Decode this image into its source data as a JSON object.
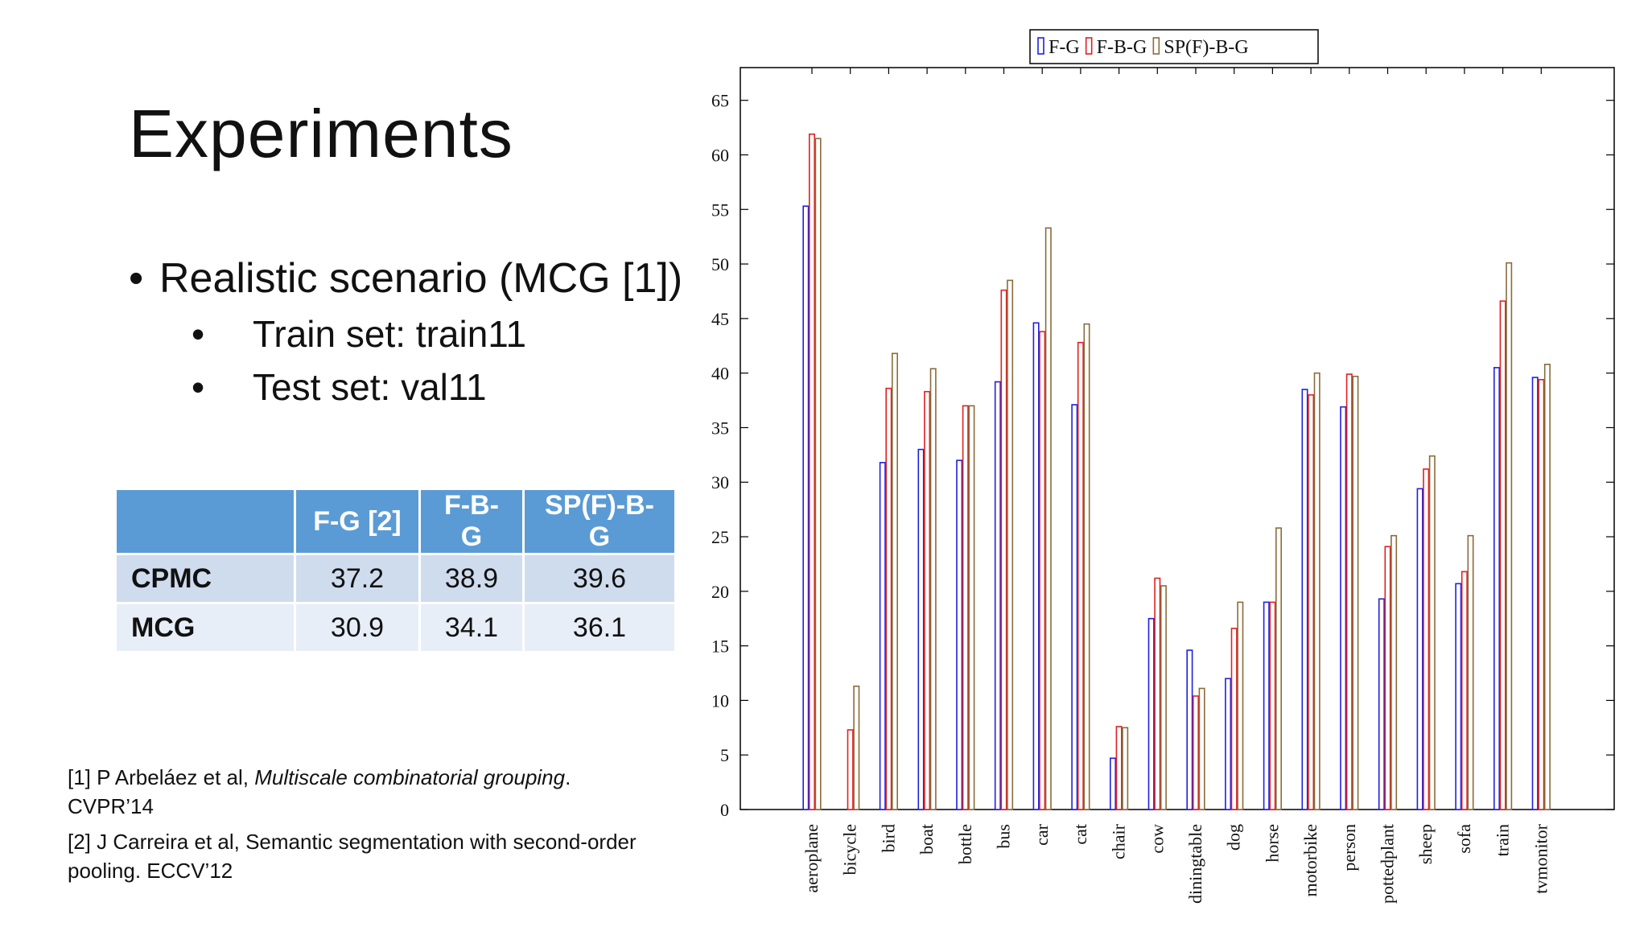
{
  "slide": {
    "title": "Experiments",
    "bullet_main": "Realistic scenario (MCG [1])",
    "sub_bullets": [
      "Train set: train11",
      "Test set: val11"
    ]
  },
  "table": {
    "headers": [
      "",
      "F-G [2]",
      "F-B-G",
      "SP(F)-B-G"
    ],
    "rows": [
      {
        "label": "CPMC",
        "values": [
          "37.2",
          "38.9",
          "39.6"
        ]
      },
      {
        "label": "MCG",
        "values": [
          "30.9",
          "34.1",
          "36.1"
        ]
      }
    ]
  },
  "references": [
    {
      "prefix": "[1] P Arbeláez et al, ",
      "title": "Multiscale combinatorial grouping",
      "suffix": ". CVPR’14"
    },
    {
      "prefix": "[2] J Carreira et al, Semantic segmentation with second-order pooling. ECCV’12",
      "title": "",
      "suffix": ""
    }
  ],
  "colors": {
    "header_blue": "#5b9bd5",
    "series_fg": "#2020e0",
    "series_fbg": "#e02020",
    "series_spfbg": "#8b6b3a"
  },
  "chart_data": {
    "type": "bar",
    "categories": [
      "aeroplane",
      "bicycle",
      "bird",
      "boat",
      "bottle",
      "bus",
      "car",
      "cat",
      "chair",
      "cow",
      "diningtable",
      "dog",
      "horse",
      "motorbike",
      "person",
      "pottedplant",
      "sheep",
      "sofa",
      "train",
      "tvmonitor"
    ],
    "series": [
      {
        "name": "F-G",
        "color": "#2020e0",
        "values": [
          55.3,
          0,
          31.8,
          33.0,
          32.0,
          39.2,
          44.6,
          37.1,
          4.7,
          17.5,
          14.6,
          12.0,
          19.0,
          38.5,
          36.9,
          19.3,
          29.4,
          20.7,
          40.5,
          39.6
        ]
      },
      {
        "name": "F-B-G",
        "color": "#e02020",
        "values": [
          61.9,
          7.3,
          38.6,
          38.3,
          37.0,
          47.6,
          43.8,
          42.8,
          7.6,
          21.2,
          10.4,
          16.6,
          19.0,
          38.0,
          39.9,
          24.1,
          31.2,
          21.8,
          46.6,
          39.4
        ]
      },
      {
        "name": "SP(F)-B-G",
        "color": "#8b6b3a",
        "values": [
          61.5,
          11.3,
          41.8,
          40.4,
          37.0,
          48.5,
          53.3,
          44.5,
          7.5,
          20.5,
          11.1,
          19.0,
          25.8,
          40.0,
          39.7,
          25.1,
          32.4,
          25.1,
          50.1,
          40.8
        ]
      }
    ],
    "yticks": [
      0,
      5,
      10,
      15,
      20,
      25,
      30,
      35,
      40,
      45,
      50,
      55,
      60,
      65
    ],
    "ylim": [
      0,
      68
    ],
    "legend_position": "top-center",
    "grid": false
  }
}
